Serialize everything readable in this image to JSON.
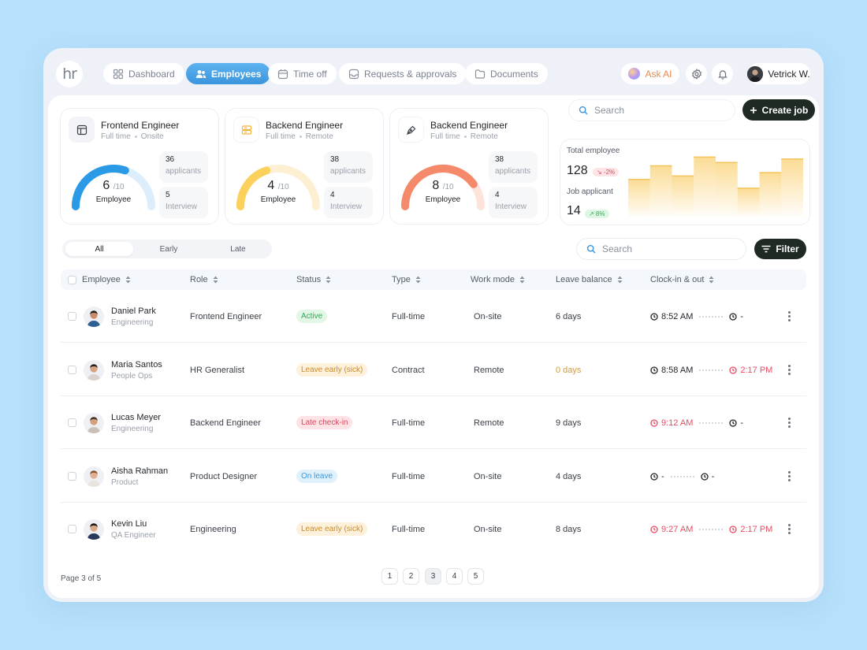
{
  "brand": {
    "logo_text": "hr"
  },
  "nav": {
    "tabs": [
      {
        "label": "Dashboard",
        "icon": "grid-icon"
      },
      {
        "label": "Employees",
        "icon": "users-icon",
        "active": true
      },
      {
        "label": "Time off",
        "icon": "calendar-icon"
      },
      {
        "label": "Requests & approvals",
        "icon": "inbox-icon"
      },
      {
        "label": "Documents",
        "icon": "folder-icon"
      }
    ],
    "ask_ai": "Ask AI",
    "user_name": "Vetrick W."
  },
  "top_search": {
    "placeholder": "Search"
  },
  "create_job": {
    "label": "Create job"
  },
  "job_cards": [
    {
      "title": "Frontend Engineer",
      "type": "Full time",
      "mode": "Onsite",
      "score": "6",
      "out_of": "/10",
      "score_label": "Employee",
      "score_value": 6,
      "color": "#2b9ae6",
      "track": "#dcedfb",
      "applicants_num": "36",
      "applicants_label": "applicants",
      "interview_num": "5",
      "interview_label": "Interview"
    },
    {
      "title": "Backend Engineer",
      "type": "Full time",
      "mode": "Remote",
      "score": "4",
      "out_of": "/10",
      "score_label": "Employee",
      "score_value": 4,
      "color": "#fbd15c",
      "track": "#fdf0d2",
      "applicants_num": "38",
      "applicants_label": "applicants",
      "interview_num": "4",
      "interview_label": "Interview"
    },
    {
      "title": "Backend Engineer",
      "type": "Full time",
      "mode": "Remote",
      "score": "8",
      "out_of": "/10",
      "score_label": "Employee",
      "score_value": 8,
      "color": "#f58a6b",
      "track": "#fde3da",
      "applicants_num": "38",
      "applicants_label": "applicants",
      "interview_num": "4",
      "interview_label": "Interview"
    }
  ],
  "totals": {
    "employee_label": "Total employee",
    "employee_value": "128",
    "employee_change": "↘ -2%",
    "applicant_label": "Job applicant",
    "applicant_value": "14",
    "applicant_change": "↗ 8%",
    "bar_values": [
      55,
      75,
      60,
      88,
      80,
      42,
      65,
      85
    ],
    "bar_color": "#fbd88a"
  },
  "segments": [
    {
      "label": "All",
      "active": true
    },
    {
      "label": "Early"
    },
    {
      "label": "Late"
    }
  ],
  "table_search": {
    "placeholder": "Search"
  },
  "filter": {
    "label": "Filter"
  },
  "columns": [
    "Employee",
    "Role",
    "Status",
    "Type",
    "Work mode",
    "Leave balance",
    "Clock-in & out"
  ],
  "rows": [
    {
      "name": "Daniel Park",
      "dept": "Engineering",
      "role": "Frontend Engineer",
      "status": "Active",
      "status_kind": "active",
      "type": "Full-time",
      "mode": "On-site",
      "leave": "6 days",
      "leave_warn": false,
      "clock_in": "8:52 AM",
      "in_red": false,
      "clock_out": "-",
      "out_red": false,
      "skin": "#c98d6a",
      "hair": "#2a2422",
      "shirt": "#2d5f93"
    },
    {
      "name": "Maria Santos",
      "dept": "People Ops",
      "role": "HR Generalist",
      "status": "Leave early (sick)",
      "status_kind": "sick",
      "type": "Contract",
      "mode": "Remote",
      "leave": "0 days",
      "leave_warn": true,
      "clock_in": "8:58 AM",
      "in_red": false,
      "clock_out": "2:17 PM",
      "out_red": true,
      "skin": "#d8a583",
      "hair": "#2b2220",
      "shirt": "#d9d3cf"
    },
    {
      "name": "Lucas Meyer",
      "dept": "Engineering",
      "role": "Backend Engineer",
      "status": "Late check-in",
      "status_kind": "late",
      "type": "Full-time",
      "mode": "Remote",
      "leave": "9 days",
      "leave_warn": false,
      "clock_in": "9:12 AM",
      "in_red": true,
      "clock_out": "-",
      "out_red": false,
      "skin": "#d6a07e",
      "hair": "#4a3425",
      "shirt": "#c9c0b8"
    },
    {
      "name": "Aisha Rahman",
      "dept": "Product",
      "role": "Product Designer",
      "status": "On leave",
      "status_kind": "leave",
      "type": "Full-time",
      "mode": "On-site",
      "leave": "4 days",
      "leave_warn": false,
      "clock_in": "-",
      "in_red": false,
      "clock_out": "-",
      "out_red": false,
      "skin": "#e1b193",
      "hair": "#8a5634",
      "shirt": "#e9e4dd"
    },
    {
      "name": "Kevin Liu",
      "dept": "QA Engineer",
      "role": "Engineering",
      "status": "Leave early (sick)",
      "status_kind": "sick",
      "type": "Full-time",
      "mode": "On-site",
      "leave": "8 days",
      "leave_warn": false,
      "clock_in": "9:27 AM",
      "in_red": true,
      "clock_out": "2:17 PM",
      "out_red": true,
      "skin": "#d9a988",
      "hair": "#1f1b1a",
      "shirt": "#283a5a"
    }
  ],
  "pagination": {
    "info": "Page 3 of 5",
    "pages": [
      "1",
      "2",
      "3",
      "4",
      "5"
    ],
    "current": "3"
  }
}
